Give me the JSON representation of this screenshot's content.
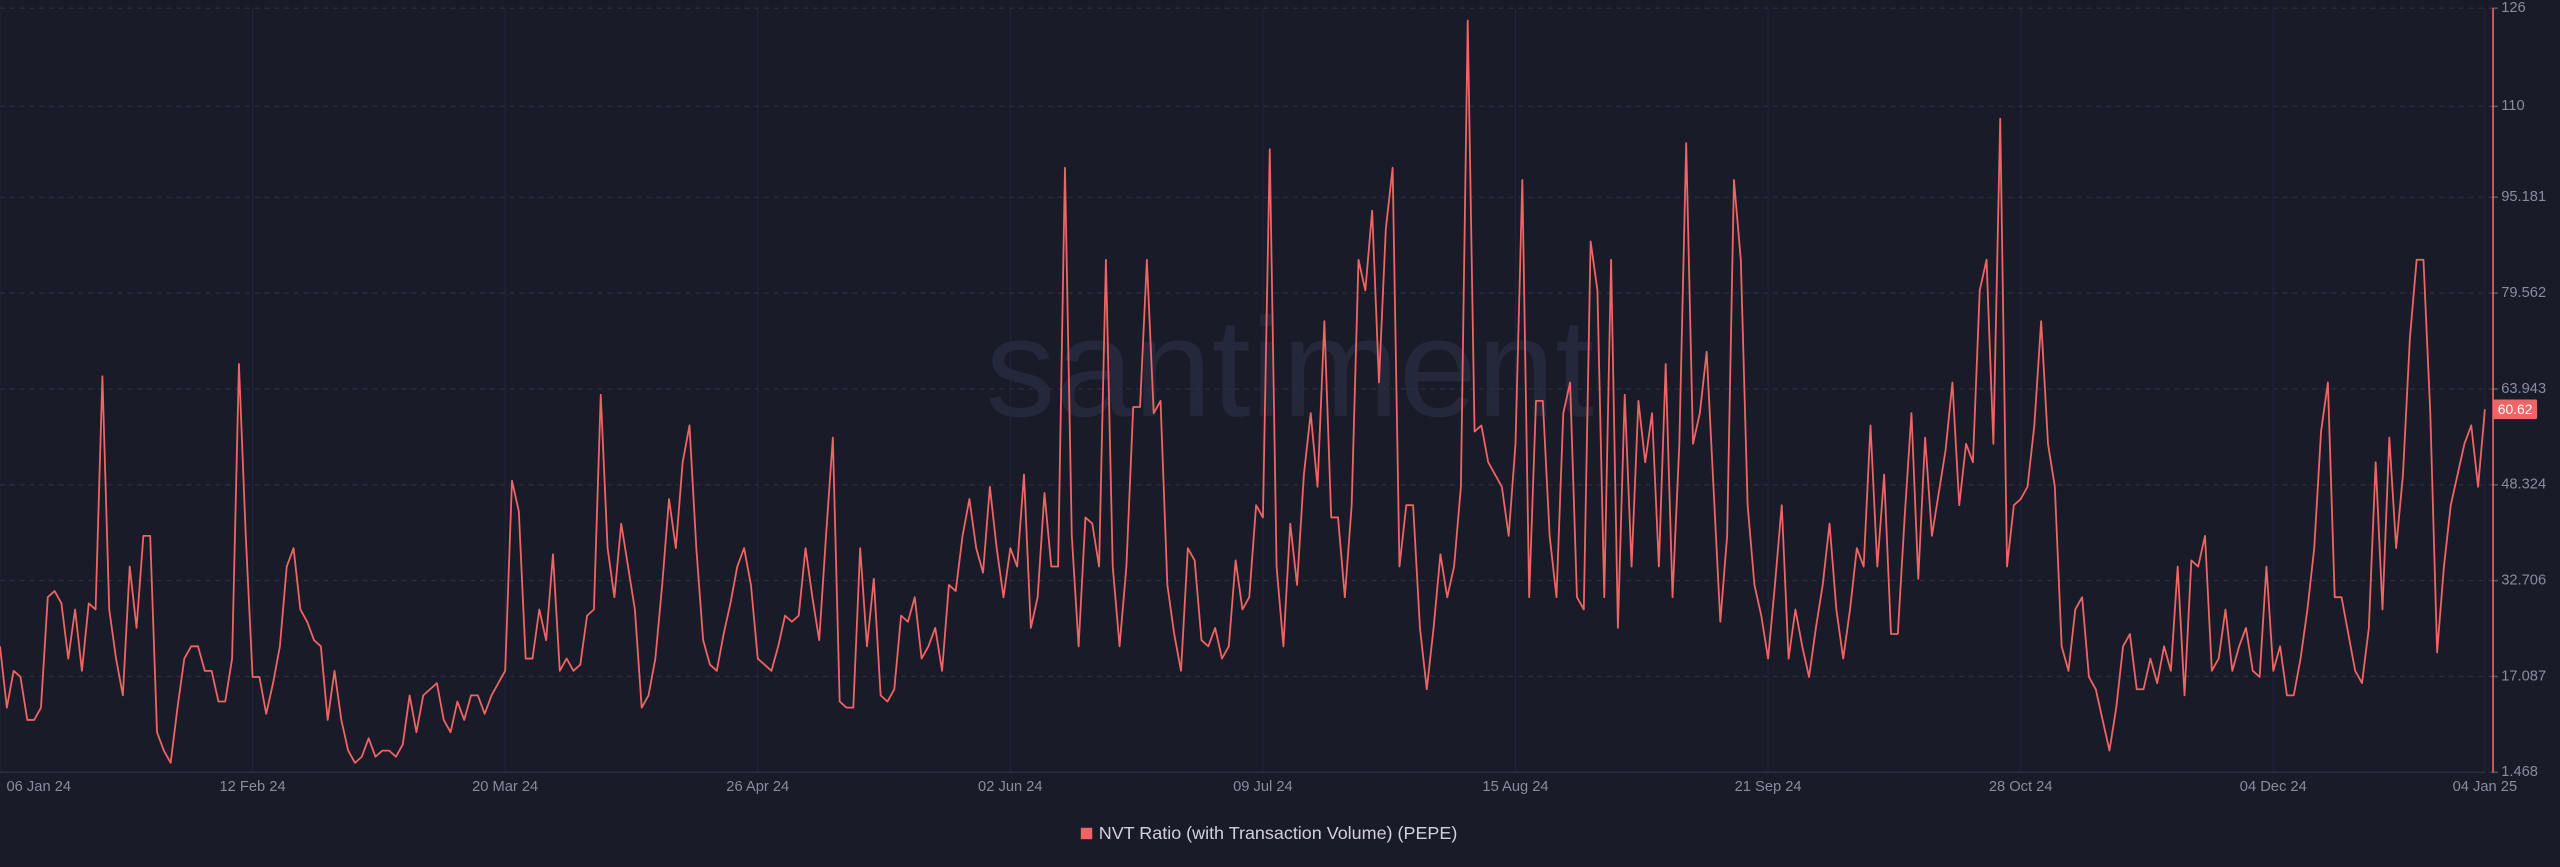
{
  "chart_data": {
    "type": "line",
    "watermark": "santiment",
    "categories": [
      "06 Jan 24",
      null,
      null,
      null,
      null,
      null,
      null,
      null,
      null,
      null,
      null,
      null,
      null,
      null,
      null,
      null,
      null,
      null,
      null,
      null,
      null,
      null,
      null,
      null,
      null,
      null,
      null,
      null,
      null,
      null,
      null,
      null,
      null,
      null,
      null,
      null,
      null,
      "12 Feb 24",
      null,
      null,
      null,
      null,
      null,
      null,
      null,
      null,
      null,
      null,
      null,
      null,
      null,
      null,
      null,
      null,
      null,
      null,
      null,
      null,
      null,
      null,
      null,
      null,
      null,
      null,
      null,
      null,
      null,
      null,
      null,
      null,
      null,
      null,
      null,
      null,
      "20 Mar 24",
      null,
      null,
      null,
      null,
      null,
      null,
      null,
      null,
      null,
      null,
      null,
      null,
      null,
      null,
      null,
      null,
      null,
      null,
      null,
      null,
      null,
      null,
      null,
      null,
      null,
      null,
      null,
      null,
      null,
      null,
      null,
      null,
      null,
      null,
      null,
      null,
      "26 Apr 24",
      null,
      null,
      null,
      null,
      null,
      null,
      null,
      null,
      null,
      null,
      null,
      null,
      null,
      null,
      null,
      null,
      null,
      null,
      null,
      null,
      null,
      null,
      null,
      null,
      null,
      null,
      null,
      null,
      null,
      null,
      null,
      null,
      null,
      null,
      null,
      null,
      "02 Jun 24",
      null,
      null,
      null,
      null,
      null,
      null,
      null,
      null,
      null,
      null,
      null,
      null,
      null,
      null,
      null,
      null,
      null,
      null,
      null,
      null,
      null,
      null,
      null,
      null,
      null,
      null,
      null,
      null,
      null,
      null,
      null,
      null,
      null,
      null,
      null,
      null,
      "09 Jul 24",
      null,
      null,
      null,
      null,
      null,
      null,
      null,
      null,
      null,
      null,
      null,
      null,
      null,
      null,
      null,
      null,
      null,
      null,
      null,
      null,
      null,
      null,
      null,
      null,
      null,
      null,
      null,
      null,
      null,
      null,
      null,
      null,
      null,
      null,
      null,
      null,
      "15 Aug 24",
      null,
      null,
      null,
      null,
      null,
      null,
      null,
      null,
      null,
      null,
      null,
      null,
      null,
      null,
      null,
      null,
      null,
      null,
      null,
      null,
      null,
      null,
      null,
      null,
      null,
      null,
      null,
      null,
      null,
      null,
      null,
      null,
      null,
      null,
      null,
      null,
      "21 Sep 24",
      null,
      null,
      null,
      null,
      null,
      null,
      null,
      null,
      null,
      null,
      null,
      null,
      null,
      null,
      null,
      null,
      null,
      null,
      null,
      null,
      null,
      null,
      null,
      null,
      null,
      null,
      null,
      null,
      null,
      null,
      null,
      null,
      null,
      null,
      null,
      null,
      "28 Oct 24",
      null,
      null,
      null,
      null,
      null,
      null,
      null,
      null,
      null,
      null,
      null,
      null,
      null,
      null,
      null,
      null,
      null,
      null,
      null,
      null,
      null,
      null,
      null,
      null,
      null,
      null,
      null,
      null,
      null,
      null,
      null,
      null,
      null,
      null,
      null,
      null,
      "04 Dec 24",
      null,
      null,
      null,
      null,
      null,
      null,
      null,
      null,
      null,
      null,
      null,
      null,
      null,
      null,
      null,
      null,
      null,
      null,
      null,
      null,
      null,
      null,
      null,
      null,
      null,
      null,
      null,
      null,
      null,
      null,
      "04 Jan 25"
    ],
    "series": [
      {
        "name": "NVT Ratio (with Transaction Volume) (PEPE)",
        "color": "#ef6464",
        "values": [
          22,
          12,
          18,
          17,
          10,
          10,
          12,
          30,
          31,
          29,
          20,
          28,
          18,
          29,
          28,
          66,
          28,
          20,
          14,
          35,
          25,
          40,
          40,
          8,
          5,
          3,
          12,
          20,
          22,
          22,
          18,
          18,
          13,
          13,
          20,
          68,
          40,
          17,
          17,
          11,
          16,
          22,
          35,
          38,
          28,
          26,
          23,
          22,
          10,
          18,
          10,
          5,
          3,
          4,
          7,
          4,
          5,
          5,
          4,
          6,
          14,
          8,
          14,
          15,
          16,
          10,
          8,
          13,
          10,
          14,
          14,
          11,
          14,
          16,
          18,
          49,
          44,
          20,
          20,
          28,
          23,
          37,
          18,
          20,
          18,
          19,
          27,
          28,
          63,
          38,
          30,
          42,
          35,
          28,
          12,
          14,
          20,
          32,
          46,
          38,
          52,
          58,
          38,
          23,
          19,
          18,
          24,
          29,
          35,
          38,
          32,
          20,
          19,
          18,
          22,
          27,
          26,
          27,
          38,
          30,
          23,
          40,
          56,
          13,
          12,
          12,
          38,
          22,
          33,
          14,
          13,
          15,
          27,
          26,
          30,
          20,
          22,
          25,
          18,
          32,
          31,
          40,
          46,
          38,
          34,
          48,
          38,
          30,
          38,
          35,
          50,
          25,
          30,
          47,
          35,
          35,
          100,
          40,
          22,
          43,
          42,
          35,
          85,
          35,
          22,
          35,
          61,
          61,
          85,
          60,
          62,
          32,
          24,
          18,
          38,
          36,
          23,
          22,
          25,
          20,
          22,
          36,
          28,
          30,
          45,
          43,
          103,
          35,
          22,
          42,
          32,
          50,
          60,
          48,
          75,
          43,
          43,
          30,
          45,
          85,
          80,
          93,
          65,
          90,
          100,
          35,
          45,
          45,
          25,
          15,
          25,
          37,
          30,
          35,
          48,
          124,
          57,
          58,
          52,
          50,
          48,
          40,
          55,
          98,
          30,
          62,
          62,
          40,
          30,
          60,
          65,
          30,
          28,
          88,
          80,
          30,
          85,
          25,
          63,
          35,
          62,
          52,
          60,
          35,
          68,
          30,
          55,
          104,
          55,
          60,
          70,
          48,
          26,
          40,
          98,
          85,
          45,
          32,
          27,
          20,
          32,
          45,
          20,
          28,
          22,
          17,
          25,
          32,
          42,
          28,
          20,
          28,
          38,
          35,
          58,
          35,
          50,
          24,
          24,
          43,
          60,
          33,
          56,
          40,
          47,
          54,
          65,
          45,
          55,
          52,
          80,
          85,
          55,
          108,
          35,
          45,
          46,
          48,
          58,
          75,
          55,
          48,
          22,
          18,
          28,
          30,
          17,
          15,
          10,
          5,
          12,
          22,
          24,
          15,
          15,
          20,
          16,
          22,
          18,
          35,
          14,
          36,
          35,
          40,
          18,
          20,
          28,
          18,
          22,
          25,
          18,
          17,
          35,
          18,
          22,
          14,
          14,
          20,
          28,
          38,
          57,
          65,
          30,
          30,
          24,
          18,
          16,
          25,
          52,
          28,
          56,
          38,
          50,
          72,
          85,
          85,
          60,
          21,
          35,
          45,
          50,
          55,
          58,
          48,
          60.62
        ]
      }
    ],
    "ylim": [
      1.468,
      126
    ],
    "yticks": [
      1.468,
      17.087,
      32.706,
      48.324,
      63.943,
      79.562,
      95.181,
      110,
      126
    ],
    "grid": true,
    "legend": "bottom"
  }
}
